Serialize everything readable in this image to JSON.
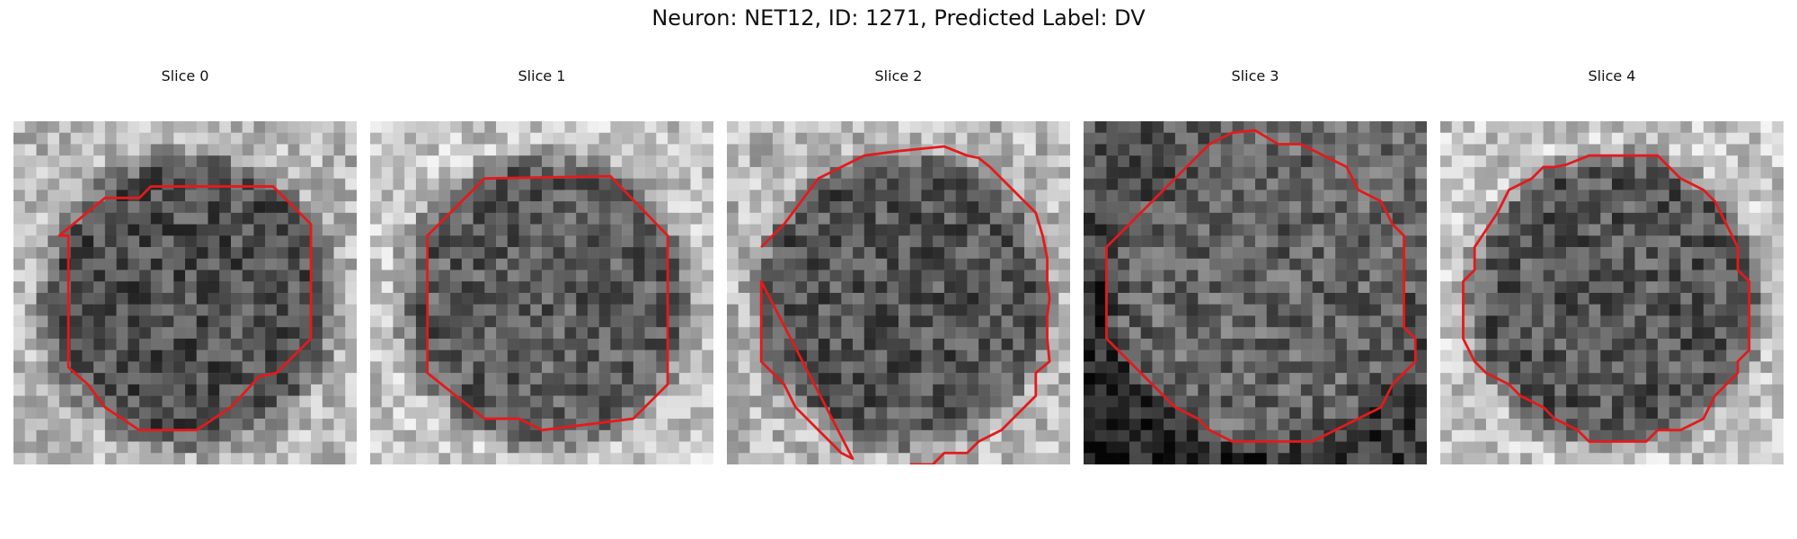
{
  "figure": {
    "title": "Neuron: NET12, ID: 1271, Predicted Label: DV",
    "contour_color": "#e31a1c",
    "colormap": "gray",
    "panels": [
      {
        "title": "Slice 0",
        "seed": 11,
        "shape": "oct",
        "darkness": 0.35,
        "bg_bias": 0.0
      },
      {
        "title": "Slice 1",
        "seed": 23,
        "shape": "oct",
        "darkness": 0.18,
        "bg_bias": 0.05
      },
      {
        "title": "Slice 2",
        "seed": 37,
        "shape": "round",
        "darkness": 0.3,
        "bg_bias": 0.0
      },
      {
        "title": "Slice 3",
        "seed": 41,
        "shape": "round",
        "darkness": 0.1,
        "bg_bias": -0.25
      },
      {
        "title": "Slice 4",
        "seed": 53,
        "shape": "oct",
        "darkness": 0.28,
        "bg_bias": 0.05
      }
    ]
  }
}
